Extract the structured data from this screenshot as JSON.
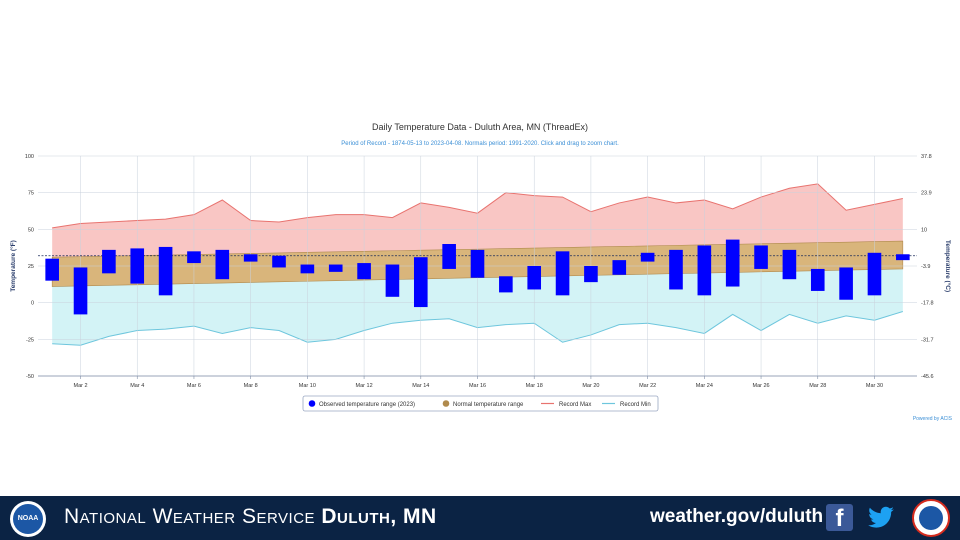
{
  "chart_data": {
    "type": "bar",
    "title": "Daily Temperature Data - Duluth Area, MN (ThreadEx)",
    "subtitle": "Period of Record - 1874-05-13 to 2023-04-08. Normals period: 1991-2020. Click and drag to zoom chart.",
    "ylabel_left": "Temperature (°F)",
    "ylabel_right": "Temperature (°C)",
    "ylim": [
      -50,
      100
    ],
    "y_ticks_left": [
      "100",
      "75",
      "50",
      "25",
      "0",
      "-25",
      "-50"
    ],
    "y_ticks_right": [
      "37.8",
      "23.9",
      "10",
      "-3.9",
      "-17.8",
      "-31.7",
      "-45.6"
    ],
    "x_tick_labels": [
      "Mar 2",
      "Mar 4",
      "Mar 6",
      "Mar 8",
      "Mar 10",
      "Mar 12",
      "Mar 14",
      "Mar 16",
      "Mar 18",
      "Mar 20",
      "Mar 22",
      "Mar 24",
      "Mar 26",
      "Mar 28",
      "Mar 30"
    ],
    "days": [
      1,
      2,
      3,
      4,
      5,
      6,
      7,
      8,
      9,
      10,
      11,
      12,
      13,
      14,
      15,
      16,
      17,
      18,
      19,
      20,
      21,
      22,
      23,
      24,
      25,
      26,
      27,
      28,
      29,
      30,
      31
    ],
    "freezing_line": 32,
    "series": [
      {
        "name": "Observed temperature range (2023)",
        "color": "#0000ff",
        "low": [
          15,
          -8,
          20,
          13,
          5,
          27,
          16,
          28,
          24,
          20,
          21,
          16,
          4,
          -3,
          23,
          17,
          7,
          9,
          5,
          14,
          19,
          28,
          9,
          5,
          11,
          23,
          16,
          8,
          2,
          5,
          29
        ],
        "high": [
          30,
          24,
          36,
          37,
          38,
          35,
          36,
          33,
          32,
          26,
          26,
          27,
          26,
          31,
          40,
          36,
          18,
          25,
          35,
          25,
          29,
          34,
          36,
          39,
          43,
          39,
          36,
          23,
          24,
          34,
          33
        ]
      },
      {
        "name": "Normal temperature range",
        "color": "#c9a66b",
        "low_start": 11,
        "low_end": 23,
        "high_start": 31,
        "high_end": 42
      },
      {
        "name": "Record Max",
        "color": "#e8736f",
        "values": [
          51,
          54,
          55,
          56,
          57,
          60,
          70,
          56,
          55,
          58,
          60,
          60,
          58,
          68,
          65,
          61,
          75,
          73,
          72,
          62,
          68,
          72,
          68,
          70,
          64,
          72,
          78,
          81,
          63,
          67,
          71
        ]
      },
      {
        "name": "Record Min",
        "color": "#6ec6dd",
        "values": [
          -28,
          -29,
          -23,
          -19,
          -18,
          -16,
          -21,
          -17,
          -19,
          -27,
          -25,
          -19,
          -14,
          -12,
          -11,
          -17,
          -15,
          -14,
          -27,
          -22,
          -15,
          -14,
          -17,
          -21,
          -8,
          -19,
          -8,
          -14,
          -9,
          -12,
          -6
        ]
      }
    ],
    "legend_position": "bottom"
  },
  "credit": "Powered by ACIS",
  "footer": {
    "logo_text": "NOAA",
    "title_part1": "National Weather Service",
    "title_part2": "Duluth, MN",
    "url": "weather.gov/duluth"
  },
  "icons": [
    "noaa-logo-icon",
    "facebook-icon",
    "twitter-icon",
    "nws-seal-icon"
  ]
}
